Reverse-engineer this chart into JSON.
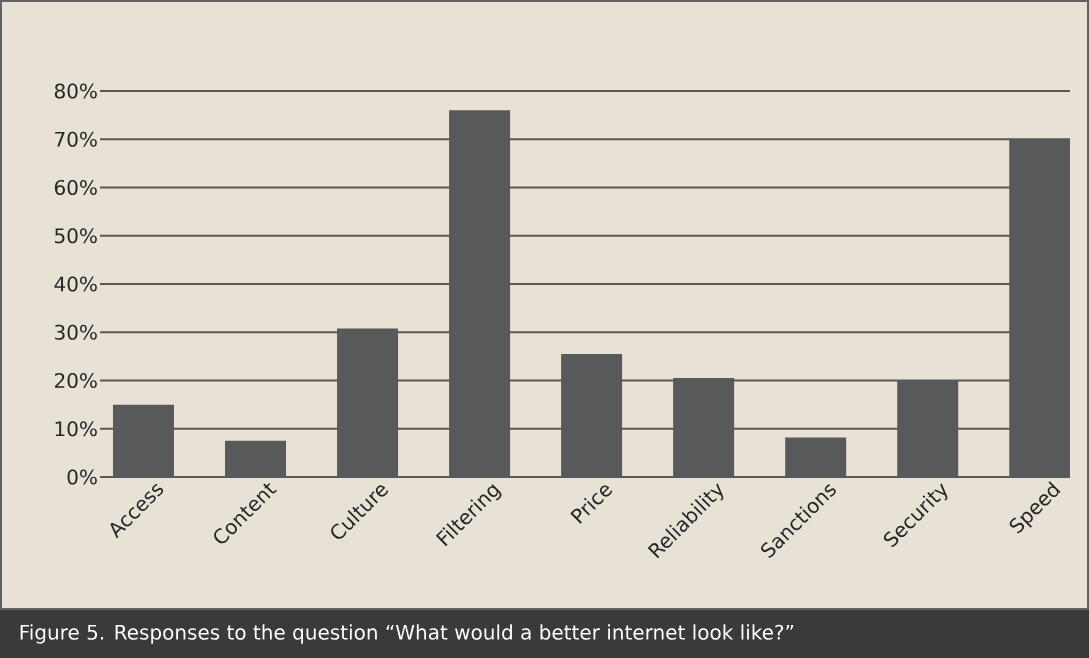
{
  "chart_data": {
    "type": "bar",
    "categories": [
      "Access",
      "Content",
      "Culture",
      "Filtering",
      "Price",
      "Reliability",
      "Sanctions",
      "Security",
      "Speed"
    ],
    "values": [
      15,
      7.5,
      30.8,
      76,
      25.5,
      20.5,
      8.2,
      20,
      70
    ],
    "color": "#58595b",
    "ylim": [
      0,
      80
    ],
    "yticks": [
      {
        "value": 0,
        "label": "0%"
      },
      {
        "value": 10,
        "label": "10%"
      },
      {
        "value": 20,
        "label": "20%"
      },
      {
        "value": 30,
        "label": "30%"
      },
      {
        "value": 40,
        "label": "40%"
      },
      {
        "value": 50,
        "label": "50%"
      },
      {
        "value": 60,
        "label": "60%"
      },
      {
        "value": 70,
        "label": "70%"
      },
      {
        "value": 80,
        "label": "80%"
      }
    ],
    "grid": "y",
    "annotations": [
      "Figure 5. Responses to the question “What would a better internet look like?”"
    ]
  }
}
